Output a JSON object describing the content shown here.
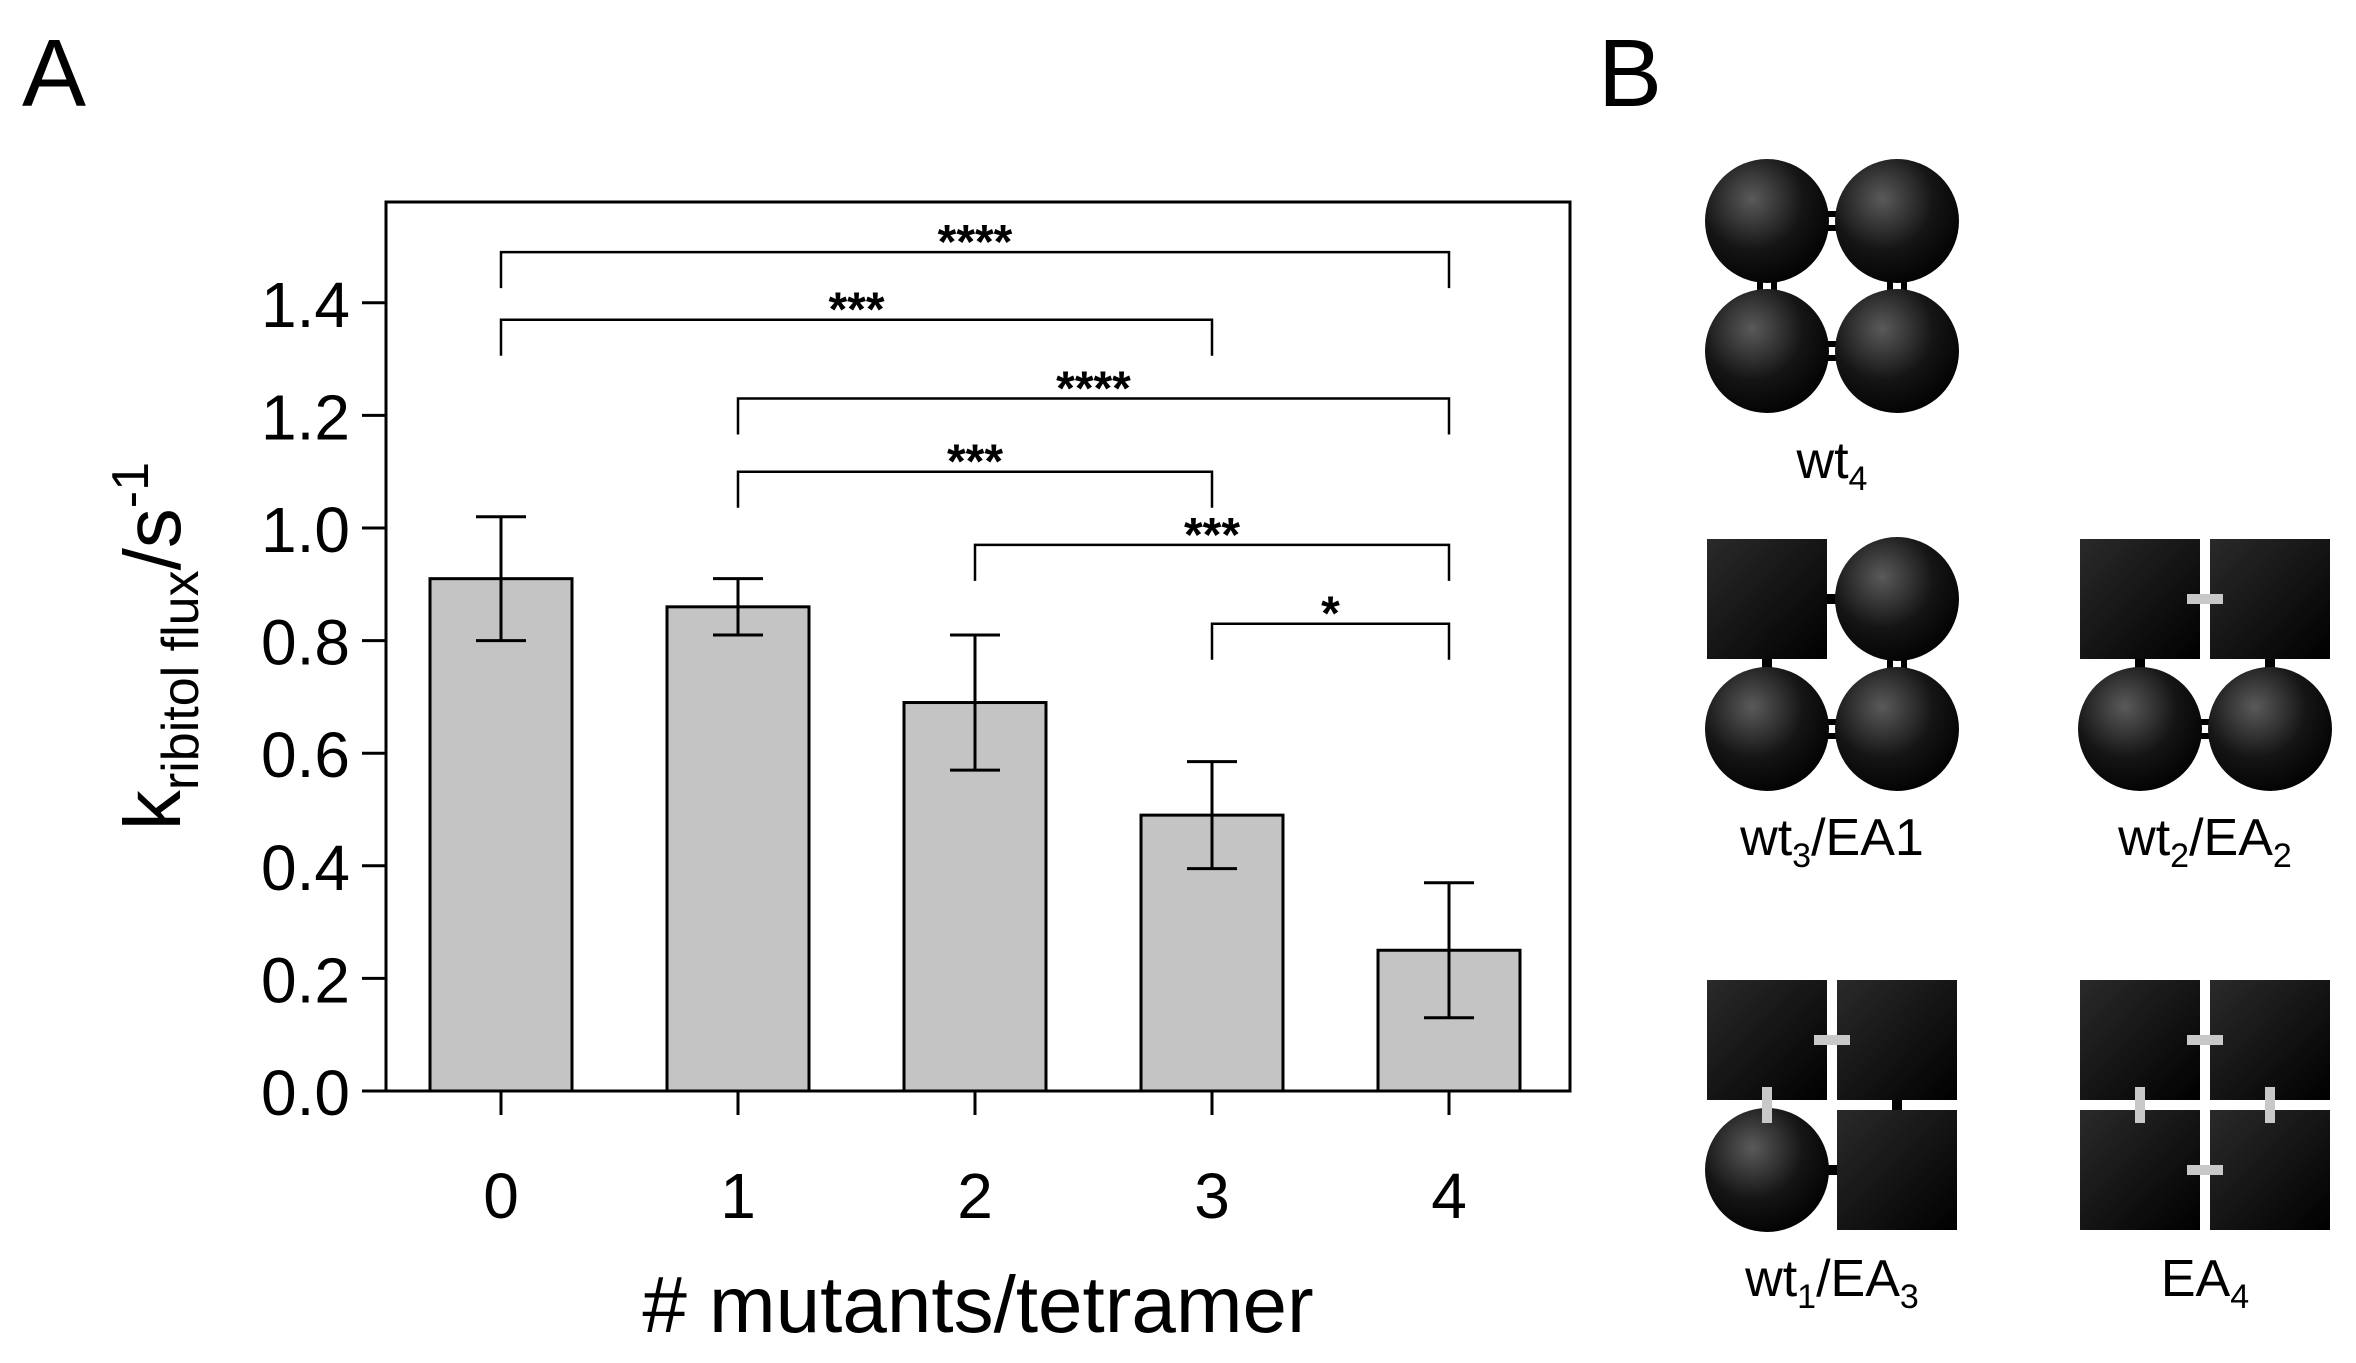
{
  "panel_a": {
    "label": "A"
  },
  "panel_b": {
    "label": "B",
    "tetramers": [
      {
        "id": "wt4",
        "base": "wt",
        "sub": "4",
        "suffix": "",
        "suffix_sub": "",
        "subunits": [
          "circle",
          "circle",
          "circle",
          "circle"
        ],
        "links": [
          "double",
          "double",
          "double",
          "double"
        ]
      },
      {
        "id": "wt3ea1",
        "base": "wt",
        "sub": "3",
        "suffix": "/EA1",
        "suffix_sub": "",
        "subunits": [
          "square",
          "circle",
          "circle",
          "circle"
        ],
        "links": [
          "single",
          "double",
          "double",
          "single"
        ]
      },
      {
        "id": "wt2ea2",
        "base": "wt",
        "sub": "2",
        "suffix": "/EA",
        "suffix_sub": "2",
        "subunits": [
          "square",
          "square",
          "circle",
          "circle"
        ],
        "links": [
          "gray",
          "single",
          "double",
          "single"
        ]
      },
      {
        "id": "wt1ea3",
        "base": "wt",
        "sub": "1",
        "suffix": "/EA",
        "suffix_sub": "3",
        "subunits": [
          "square",
          "square",
          "circle",
          "square"
        ],
        "links": [
          "gray",
          "single",
          "single",
          "gray"
        ]
      },
      {
        "id": "ea4",
        "base": "EA",
        "sub": "4",
        "suffix": "",
        "suffix_sub": "",
        "subunits": [
          "square",
          "square",
          "square",
          "square"
        ],
        "links": [
          "gray",
          "gray",
          "gray",
          "gray"
        ]
      }
    ]
  },
  "chart_data": {
    "type": "bar",
    "categories": [
      "0",
      "1",
      "2",
      "3",
      "4"
    ],
    "values": [
      0.91,
      0.86,
      0.69,
      0.49,
      0.25
    ],
    "errors": [
      0.11,
      0.05,
      0.12,
      0.095,
      0.12
    ],
    "xlabel": "# mutants/tetramer",
    "ylabel": {
      "main": "k",
      "sub": "ribitol flux",
      "unit": "/s",
      "sup": "-1"
    },
    "ylim": [
      0,
      1.55
    ],
    "yticks": [
      "0.0",
      "0.2",
      "0.4",
      "0.6",
      "0.8",
      "1.0",
      "1.2",
      "1.4"
    ],
    "bar_color": "#c4c4c4",
    "significance": [
      {
        "from": 0,
        "to": 4,
        "label": "****",
        "y": 1.49
      },
      {
        "from": 0,
        "to": 3,
        "label": "***",
        "y": 1.37
      },
      {
        "from": 1,
        "to": 4,
        "label": "****",
        "y": 1.23
      },
      {
        "from": 1,
        "to": 3,
        "label": "***",
        "y": 1.1
      },
      {
        "from": 2,
        "to": 4,
        "label": "***",
        "y": 0.97
      },
      {
        "from": 3,
        "to": 4,
        "label": "*",
        "y": 0.83
      }
    ]
  }
}
